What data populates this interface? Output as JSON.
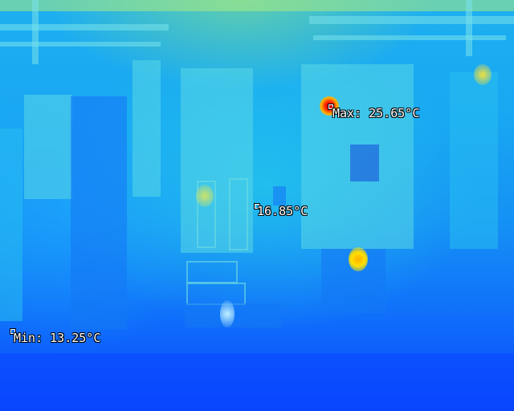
{
  "overlay": {
    "max_label": "Max: 25.65°C",
    "center_label": "16.85°C",
    "min_label": "Min: 13.25°C"
  },
  "palette": {
    "cold": "#0a46ff",
    "cool": "#18a6f2",
    "warm": "#ffd200",
    "hot": "#e00000"
  }
}
